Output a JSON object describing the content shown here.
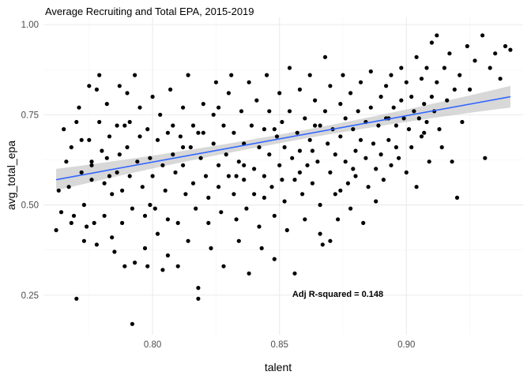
{
  "chart_data": {
    "type": "scatter",
    "title": "Average Recruiting and Total EPA, 2015-2019",
    "xlabel": "talent",
    "ylabel": "avg_total_epa",
    "xlim": [
      0.757,
      0.946
    ],
    "ylim": [
      0.14,
      1.02
    ],
    "x_ticks": [
      0.8,
      0.85,
      0.9
    ],
    "x_tick_labels": [
      "0.80",
      "0.85",
      "0.90"
    ],
    "y_ticks": [
      0.25,
      0.5,
      0.75,
      1.0
    ],
    "y_tick_labels": [
      "0.25",
      "0.50",
      "0.75",
      "1.00"
    ],
    "grid": true,
    "annotation": {
      "text": "Adj R-squared = 0.148",
      "x": 0.873,
      "y": 0.245
    },
    "trend": {
      "type": "linear",
      "color": "#3366FF",
      "band_color": "#BEBEBE",
      "x_start": 0.762,
      "y_start": 0.57,
      "x_end": 0.941,
      "y_end": 0.8,
      "band_half_width_ends": 0.03,
      "band_half_width_mid": 0.012
    },
    "points_color": "#000000",
    "points": [
      [
        0.762,
        0.43
      ],
      [
        0.763,
        0.54
      ],
      [
        0.764,
        0.48
      ],
      [
        0.765,
        0.71
      ],
      [
        0.766,
        0.62
      ],
      [
        0.767,
        0.55
      ],
      [
        0.768,
        0.66
      ],
      [
        0.768,
        0.45
      ],
      [
        0.769,
        0.47
      ],
      [
        0.77,
        0.24
      ],
      [
        0.77,
        0.73
      ],
      [
        0.771,
        0.77
      ],
      [
        0.772,
        0.68
      ],
      [
        0.772,
        0.59
      ],
      [
        0.773,
        0.5
      ],
      [
        0.773,
        0.4
      ],
      [
        0.774,
        0.44
      ],
      [
        0.775,
        0.83
      ],
      [
        0.775,
        0.68
      ],
      [
        0.776,
        0.62
      ],
      [
        0.776,
        0.57
      ],
      [
        0.777,
        0.45
      ],
      [
        0.778,
        0.39
      ],
      [
        0.778,
        0.82
      ],
      [
        0.779,
        0.73
      ],
      [
        0.779,
        0.86
      ],
      [
        0.78,
        0.65
      ],
      [
        0.781,
        0.56
      ],
      [
        0.781,
        0.47
      ],
      [
        0.782,
        0.63
      ],
      [
        0.782,
        0.78
      ],
      [
        0.783,
        0.69
      ],
      [
        0.784,
        0.53
      ],
      [
        0.784,
        0.41
      ],
      [
        0.785,
        0.37
      ],
      [
        0.786,
        0.59
      ],
      [
        0.786,
        0.72
      ],
      [
        0.787,
        0.64
      ],
      [
        0.787,
        0.83
      ],
      [
        0.788,
        0.54
      ],
      [
        0.788,
        0.45
      ],
      [
        0.789,
        0.33
      ],
      [
        0.79,
        0.81
      ],
      [
        0.79,
        0.66
      ],
      [
        0.791,
        0.73
      ],
      [
        0.791,
        0.58
      ],
      [
        0.792,
        0.49
      ],
      [
        0.793,
        0.34
      ],
      [
        0.793,
        0.86
      ],
      [
        0.794,
        0.62
      ],
      [
        0.795,
        0.77
      ],
      [
        0.795,
        0.69
      ],
      [
        0.796,
        0.55
      ],
      [
        0.797,
        0.47
      ],
      [
        0.797,
        0.38
      ],
      [
        0.798,
        0.33
      ],
      [
        0.798,
        0.71
      ],
      [
        0.799,
        0.63
      ],
      [
        0.8,
        0.8
      ],
      [
        0.8,
        0.58
      ],
      [
        0.801,
        0.49
      ],
      [
        0.802,
        0.42
      ],
      [
        0.802,
        0.68
      ],
      [
        0.803,
        0.75
      ],
      [
        0.804,
        0.32
      ],
      [
        0.804,
        0.61
      ],
      [
        0.805,
        0.54
      ],
      [
        0.806,
        0.46
      ],
      [
        0.806,
        0.36
      ],
      [
        0.807,
        0.82
      ],
      [
        0.808,
        0.72
      ],
      [
        0.808,
        0.64
      ],
      [
        0.809,
        0.59
      ],
      [
        0.81,
        0.33
      ],
      [
        0.81,
        0.45
      ],
      [
        0.811,
        0.69
      ],
      [
        0.812,
        0.77
      ],
      [
        0.812,
        0.61
      ],
      [
        0.813,
        0.53
      ],
      [
        0.814,
        0.86
      ],
      [
        0.814,
        0.4
      ],
      [
        0.815,
        0.66
      ],
      [
        0.816,
        0.72
      ],
      [
        0.816,
        0.56
      ],
      [
        0.817,
        0.49
      ],
      [
        0.818,
        0.24
      ],
      [
        0.818,
        0.27
      ],
      [
        0.819,
        0.63
      ],
      [
        0.82,
        0.78
      ],
      [
        0.82,
        0.7
      ],
      [
        0.821,
        0.58
      ],
      [
        0.822,
        0.52
      ],
      [
        0.822,
        0.45
      ],
      [
        0.823,
        0.38
      ],
      [
        0.824,
        0.67
      ],
      [
        0.824,
        0.75
      ],
      [
        0.825,
        0.84
      ],
      [
        0.826,
        0.61
      ],
      [
        0.826,
        0.55
      ],
      [
        0.827,
        0.48
      ],
      [
        0.828,
        0.33
      ],
      [
        0.828,
        0.72
      ],
      [
        0.829,
        0.64
      ],
      [
        0.83,
        0.81
      ],
      [
        0.83,
        0.58
      ],
      [
        0.831,
        0.86
      ],
      [
        0.832,
        0.7
      ],
      [
        0.832,
        0.53
      ],
      [
        0.833,
        0.46
      ],
      [
        0.834,
        0.4
      ],
      [
        0.834,
        0.62
      ],
      [
        0.835,
        0.76
      ],
      [
        0.836,
        0.67
      ],
      [
        0.836,
        0.57
      ],
      [
        0.837,
        0.49
      ],
      [
        0.838,
        0.31
      ],
      [
        0.838,
        0.84
      ],
      [
        0.839,
        0.72
      ],
      [
        0.84,
        0.6
      ],
      [
        0.84,
        0.53
      ],
      [
        0.841,
        0.79
      ],
      [
        0.842,
        0.66
      ],
      [
        0.842,
        0.44
      ],
      [
        0.843,
        0.38
      ],
      [
        0.844,
        0.71
      ],
      [
        0.844,
        0.58
      ],
      [
        0.845,
        0.86
      ],
      [
        0.846,
        0.76
      ],
      [
        0.846,
        0.64
      ],
      [
        0.847,
        0.55
      ],
      [
        0.848,
        0.47
      ],
      [
        0.848,
        0.35
      ],
      [
        0.849,
        0.69
      ],
      [
        0.85,
        0.81
      ],
      [
        0.85,
        0.61
      ],
      [
        0.851,
        0.73
      ],
      [
        0.852,
        0.66
      ],
      [
        0.852,
        0.51
      ],
      [
        0.853,
        0.43
      ],
      [
        0.854,
        0.88
      ],
      [
        0.854,
        0.76
      ],
      [
        0.855,
        0.63
      ],
      [
        0.856,
        0.57
      ],
      [
        0.856,
        0.31
      ],
      [
        0.857,
        0.7
      ],
      [
        0.858,
        0.82
      ],
      [
        0.858,
        0.65
      ],
      [
        0.859,
        0.53
      ],
      [
        0.86,
        0.46
      ],
      [
        0.86,
        0.74
      ],
      [
        0.861,
        0.61
      ],
      [
        0.862,
        0.86
      ],
      [
        0.862,
        0.68
      ],
      [
        0.863,
        0.56
      ],
      [
        0.864,
        0.79
      ],
      [
        0.864,
        0.72
      ],
      [
        0.865,
        0.62
      ],
      [
        0.866,
        0.5
      ],
      [
        0.866,
        0.42
      ],
      [
        0.867,
        0.39
      ],
      [
        0.868,
        0.91
      ],
      [
        0.868,
        0.76
      ],
      [
        0.869,
        0.67
      ],
      [
        0.87,
        0.59
      ],
      [
        0.87,
        0.83
      ],
      [
        0.871,
        0.71
      ],
      [
        0.872,
        0.64
      ],
      [
        0.872,
        0.53
      ],
      [
        0.873,
        0.46
      ],
      [
        0.874,
        0.78
      ],
      [
        0.874,
        0.69
      ],
      [
        0.875,
        0.86
      ],
      [
        0.876,
        0.74
      ],
      [
        0.876,
        0.62
      ],
      [
        0.877,
        0.56
      ],
      [
        0.878,
        0.49
      ],
      [
        0.878,
        0.81
      ],
      [
        0.879,
        0.71
      ],
      [
        0.88,
        0.65
      ],
      [
        0.88,
        0.58
      ],
      [
        0.881,
        0.76
      ],
      [
        0.882,
        0.84
      ],
      [
        0.882,
        0.68
      ],
      [
        0.883,
        0.45
      ],
      [
        0.884,
        0.73
      ],
      [
        0.884,
        0.63
      ],
      [
        0.885,
        0.55
      ],
      [
        0.886,
        0.87
      ],
      [
        0.886,
        0.77
      ],
      [
        0.887,
        0.67
      ],
      [
        0.888,
        0.6
      ],
      [
        0.888,
        0.51
      ],
      [
        0.889,
        0.72
      ],
      [
        0.89,
        0.8
      ],
      [
        0.89,
        0.64
      ],
      [
        0.891,
        0.57
      ],
      [
        0.892,
        0.83
      ],
      [
        0.892,
        0.74
      ],
      [
        0.893,
        0.68
      ],
      [
        0.894,
        0.61
      ],
      [
        0.894,
        0.86
      ],
      [
        0.895,
        0.77
      ],
      [
        0.896,
        0.66
      ],
      [
        0.896,
        0.72
      ],
      [
        0.897,
        0.63
      ],
      [
        0.898,
        0.88
      ],
      [
        0.898,
        0.79
      ],
      [
        0.899,
        0.74
      ],
      [
        0.9,
        0.59
      ],
      [
        0.9,
        0.84
      ],
      [
        0.901,
        0.71
      ],
      [
        0.902,
        0.66
      ],
      [
        0.902,
        0.8
      ],
      [
        0.903,
        0.76
      ],
      [
        0.904,
        0.91
      ],
      [
        0.904,
        0.55
      ],
      [
        0.905,
        0.74
      ],
      [
        0.906,
        0.85
      ],
      [
        0.906,
        0.69
      ],
      [
        0.907,
        0.78
      ],
      [
        0.908,
        0.88
      ],
      [
        0.908,
        0.73
      ],
      [
        0.909,
        0.62
      ],
      [
        0.91,
        0.8
      ],
      [
        0.91,
        0.95
      ],
      [
        0.911,
        0.76
      ],
      [
        0.912,
        0.97
      ],
      [
        0.912,
        0.84
      ],
      [
        0.913,
        0.71
      ],
      [
        0.914,
        0.66
      ],
      [
        0.915,
        0.88
      ],
      [
        0.916,
        0.79
      ],
      [
        0.917,
        0.92
      ],
      [
        0.918,
        0.62
      ],
      [
        0.919,
        0.82
      ],
      [
        0.92,
        0.52
      ],
      [
        0.921,
        0.86
      ],
      [
        0.922,
        0.73
      ],
      [
        0.924,
        0.94
      ],
      [
        0.925,
        0.82
      ],
      [
        0.927,
        0.9
      ],
      [
        0.93,
        0.97
      ],
      [
        0.931,
        0.63
      ],
      [
        0.933,
        0.88
      ],
      [
        0.935,
        0.92
      ],
      [
        0.937,
        0.85
      ],
      [
        0.939,
        0.94
      ],
      [
        0.941,
        0.93
      ],
      [
        0.818,
        0.7
      ],
      [
        0.826,
        0.77
      ],
      [
        0.792,
        0.17
      ],
      [
        0.858,
        0.59
      ],
      [
        0.844,
        0.52
      ],
      [
        0.836,
        0.61
      ],
      [
        0.776,
        0.61
      ],
      [
        0.783,
        0.58
      ],
      [
        0.799,
        0.5
      ],
      [
        0.806,
        0.7
      ],
      [
        0.812,
        0.66
      ],
      [
        0.851,
        0.57
      ],
      [
        0.866,
        0.72
      ],
      [
        0.879,
        0.6
      ],
      [
        0.893,
        0.74
      ],
      [
        0.907,
        0.7
      ],
      [
        0.87,
        0.4
      ],
      [
        0.874,
        0.54
      ],
      [
        0.863,
        0.65
      ],
      [
        0.848,
        0.71
      ],
      [
        0.833,
        0.58
      ],
      [
        0.789,
        0.72
      ]
    ]
  }
}
